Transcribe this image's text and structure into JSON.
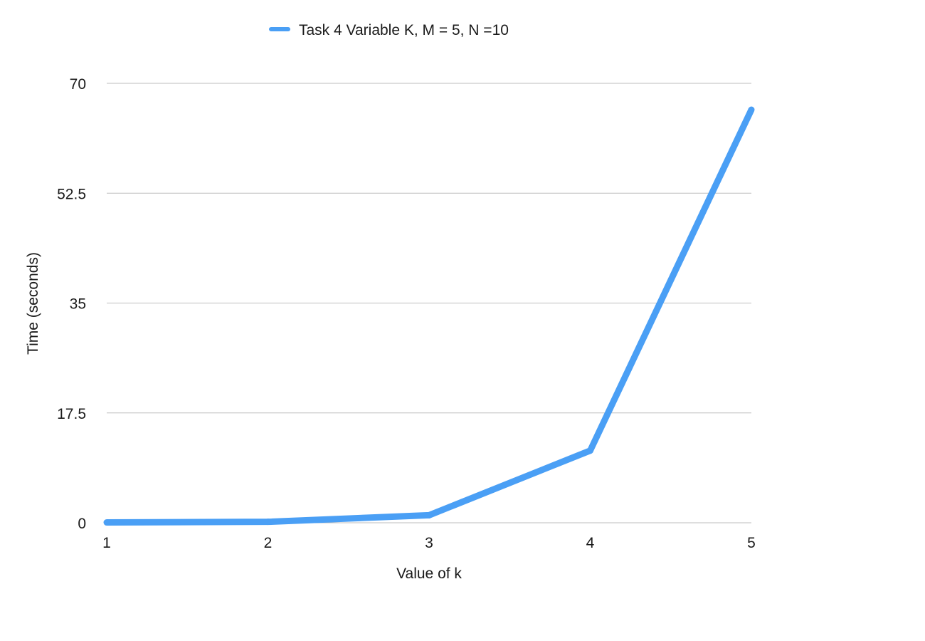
{
  "chart_data": {
    "type": "line",
    "title": "",
    "xlabel": "Value of k",
    "ylabel": "Time (seconds)",
    "x": [
      1,
      2,
      3,
      4,
      5
    ],
    "x_tick_labels": [
      "1",
      "2",
      "3",
      "4",
      "5"
    ],
    "y_tick_labels": [
      "0",
      "17.5",
      "35",
      "52.5",
      "70"
    ],
    "y_ticks": [
      0,
      17.5,
      35,
      52.5,
      70
    ],
    "ylim": [
      0,
      70
    ],
    "xlim": [
      1,
      5
    ],
    "grid": true,
    "legend_position": "top",
    "series": [
      {
        "name": "Task 4 Variable K,  M = 5, N =10",
        "values": [
          0.05,
          0.15,
          1.2,
          11.5,
          65.8
        ],
        "color": "#4a9ff5"
      }
    ]
  }
}
